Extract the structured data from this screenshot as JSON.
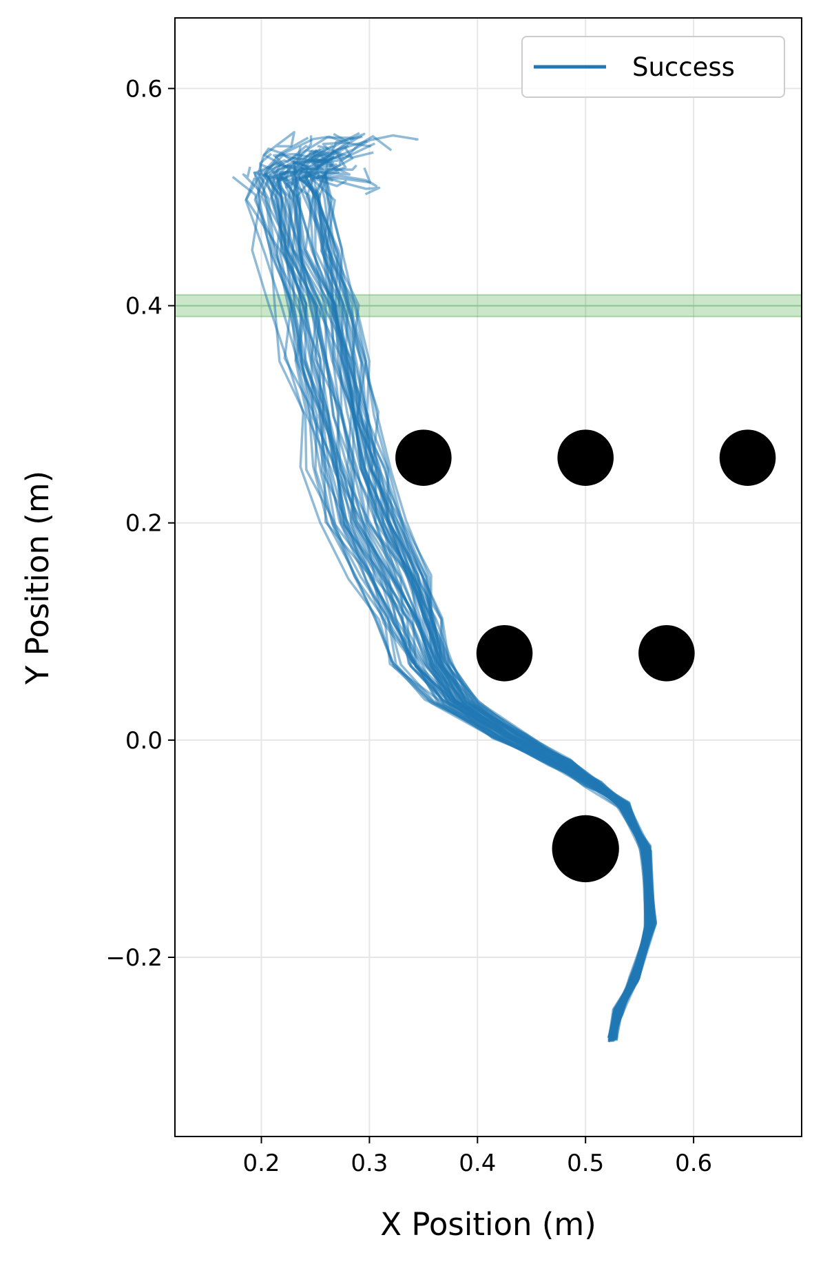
{
  "chart_data": {
    "type": "line",
    "title": "",
    "xlabel": "X Position (m)",
    "ylabel": "Y Position (m)",
    "xlim": [
      0.12,
      0.7
    ],
    "ylim": [
      -0.365,
      0.665
    ],
    "xticks": [
      {
        "value": 0.2,
        "label": "0.2"
      },
      {
        "value": 0.3,
        "label": "0.3"
      },
      {
        "value": 0.4,
        "label": "0.4"
      },
      {
        "value": 0.5,
        "label": "0.5"
      },
      {
        "value": 0.6,
        "label": "0.6"
      }
    ],
    "yticks": [
      {
        "value": 0.6,
        "label": "0.6"
      },
      {
        "value": 0.4,
        "label": "0.4"
      },
      {
        "value": 0.2,
        "label": "0.2"
      },
      {
        "value": 0.0,
        "label": "0.0"
      },
      {
        "value": -0.2,
        "label": "−0.2"
      }
    ],
    "grid": true,
    "legend": {
      "position": "top-right",
      "entries": [
        {
          "name": "Success",
          "color": "#1f77b4"
        }
      ]
    },
    "series_color": "#1f77b4",
    "goal_band": {
      "y_min": 0.39,
      "y_max": 0.41,
      "color": "#2ca02c"
    },
    "start_point": [
      0.525,
      -0.275
    ],
    "representative_path": [
      [
        0.525,
        -0.275
      ],
      [
        0.53,
        -0.25
      ],
      [
        0.545,
        -0.22
      ],
      [
        0.56,
        -0.17
      ],
      [
        0.555,
        -0.1
      ],
      [
        0.535,
        -0.06
      ],
      [
        0.505,
        -0.04
      ],
      [
        0.47,
        -0.02
      ],
      [
        0.42,
        0.005
      ],
      [
        0.37,
        0.035
      ],
      [
        0.34,
        0.07
      ],
      [
        0.325,
        0.11
      ],
      [
        0.305,
        0.15
      ],
      [
        0.28,
        0.2
      ],
      [
        0.265,
        0.25
      ],
      [
        0.255,
        0.3
      ],
      [
        0.245,
        0.35
      ],
      [
        0.235,
        0.4
      ],
      [
        0.22,
        0.45
      ],
      [
        0.21,
        0.5
      ],
      [
        0.205,
        0.52
      ]
    ],
    "num_trajectories": 60,
    "obstacles": [
      {
        "x": 0.35,
        "y": 0.26,
        "r": 0.026
      },
      {
        "x": 0.5,
        "y": 0.26,
        "r": 0.026
      },
      {
        "x": 0.65,
        "y": 0.26,
        "r": 0.026
      },
      {
        "x": 0.425,
        "y": 0.08,
        "r": 0.026
      },
      {
        "x": 0.575,
        "y": 0.08,
        "r": 0.026
      },
      {
        "x": 0.5,
        "y": -0.1,
        "r": 0.031
      }
    ]
  }
}
